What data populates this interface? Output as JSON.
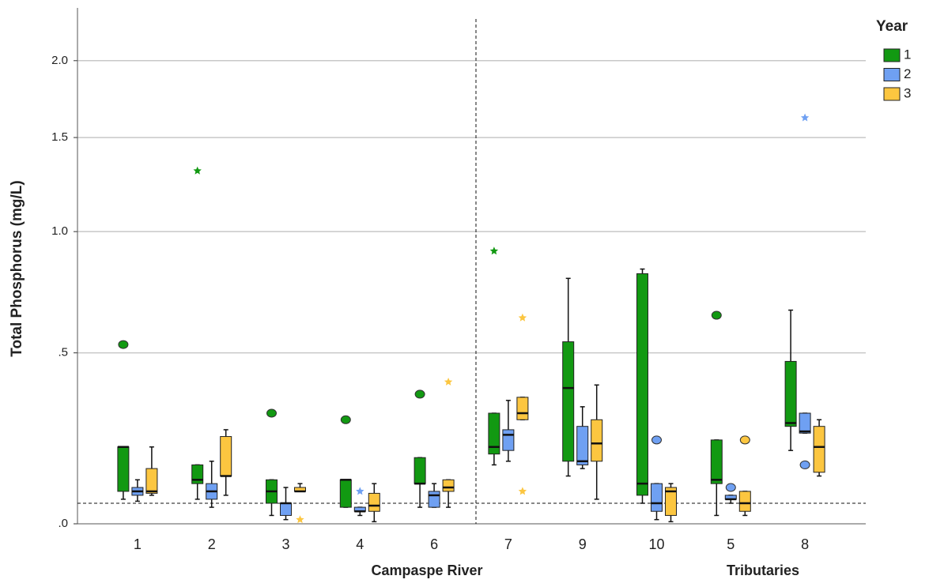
{
  "chart_data": {
    "type": "boxplot",
    "y_label": "Total Phosphorus (mg/L)",
    "yscale": "log(x+1)",
    "ylim": [
      0,
      2.4
    ],
    "yticks": [
      {
        "value": 0,
        "label": ".0"
      },
      {
        "value": 0.5,
        "label": ".5"
      },
      {
        "value": 1.0,
        "label": "1.0"
      },
      {
        "value": 1.5,
        "label": "1.5"
      },
      {
        "value": 2.0,
        "label": "2.0"
      }
    ],
    "grid": true,
    "reference_line": 0.05,
    "categories": [
      "1",
      "2",
      "3",
      "4",
      "6",
      "7",
      "9",
      "10",
      "5",
      "8"
    ],
    "groups": [
      {
        "label": "Campaspe River",
        "categories": [
          "1",
          "2",
          "3",
          "4",
          "6"
        ]
      },
      {
        "label": "Tributaries",
        "categories": [
          "7",
          "9",
          "10",
          "5",
          "8"
        ]
      }
    ],
    "legend_title": "Year",
    "legend": "top-right",
    "series": [
      {
        "name": "1",
        "color": "#129912",
        "min": [
          0.06,
          0.06,
          0.02,
          0.04,
          0.04,
          0.15,
          0.12,
          0.05,
          0.02,
          0.19
        ],
        "q1": [
          0.08,
          0.1,
          0.05,
          0.04,
          0.1,
          0.18,
          0.16,
          0.07,
          0.1,
          0.26
        ],
        "median": [
          0.2,
          0.11,
          0.08,
          0.11,
          0.1,
          0.2,
          0.38,
          0.1,
          0.11,
          0.27
        ],
        "q3": [
          0.2,
          0.15,
          0.11,
          0.11,
          0.17,
          0.3,
          0.54,
          0.81,
          0.22,
          0.47
        ],
        "max": [
          0.2,
          0.15,
          0.11,
          0.11,
          0.17,
          0.3,
          0.79,
          0.83,
          0.22,
          0.66
        ],
        "outliers": [
          [
            0.53
          ],
          [],
          [
            0.3
          ],
          [
            0.28
          ],
          [
            0.36
          ],
          [],
          [],
          [],
          [
            0.64
          ],
          []
        ],
        "extremes": [
          [],
          [
            1.31
          ],
          [],
          [],
          [],
          [
            0.91
          ],
          [],
          [],
          [],
          []
        ]
      },
      {
        "name": "2",
        "color": "#6fa0f2",
        "min": [
          0.055,
          0.04,
          0.01,
          0.02,
          0.04,
          0.16,
          0.14,
          0.01,
          0.05,
          0.24
        ],
        "q1": [
          0.07,
          0.06,
          0.02,
          0.03,
          0.04,
          0.19,
          0.15,
          0.03,
          0.06,
          0.24
        ],
        "median": [
          0.08,
          0.08,
          0.05,
          0.03,
          0.07,
          0.235,
          0.16,
          0.05,
          0.06,
          0.245
        ],
        "q3": [
          0.09,
          0.1,
          0.05,
          0.04,
          0.08,
          0.25,
          0.26,
          0.1,
          0.07,
          0.3
        ],
        "max": [
          0.11,
          0.16,
          0.09,
          0.04,
          0.1,
          0.34,
          0.32,
          0.1,
          0.07,
          0.3
        ],
        "outliers": [
          [],
          [],
          [],
          [],
          [],
          [],
          [],
          [
            0.22
          ],
          [
            0.09
          ],
          [
            0.15
          ]
        ],
        "extremes": [
          [],
          [],
          [],
          [
            0.08
          ],
          [],
          [],
          [],
          [],
          [],
          [
            1.62
          ]
        ]
      },
      {
        "name": "3",
        "color": "#fcc640",
        "min": [
          0.07,
          0.07,
          0.08,
          0.005,
          0.04,
          0.28,
          0.06,
          0.005,
          0.02,
          0.12
        ],
        "q1": [
          0.075,
          0.12,
          0.08,
          0.03,
          0.08,
          0.28,
          0.16,
          0.02,
          0.03,
          0.13
        ],
        "median": [
          0.08,
          0.12,
          0.08,
          0.044,
          0.09,
          0.3,
          0.21,
          0.08,
          0.05,
          0.2
        ],
        "q3": [
          0.14,
          0.23,
          0.09,
          0.075,
          0.11,
          0.35,
          0.28,
          0.09,
          0.08,
          0.26
        ],
        "max": [
          0.2,
          0.25,
          0.1,
          0.1,
          0.11,
          0.35,
          0.39,
          0.1,
          0.08,
          0.28
        ],
        "outliers": [
          [],
          [],
          [],
          [],
          [],
          [],
          [],
          [],
          [
            0.22
          ],
          []
        ],
        "extremes": [
          [],
          [],
          [
            0.01
          ],
          [],
          [
            0.4
          ],
          [
            0.63,
            0.08
          ],
          [],
          [],
          [],
          []
        ]
      }
    ]
  }
}
